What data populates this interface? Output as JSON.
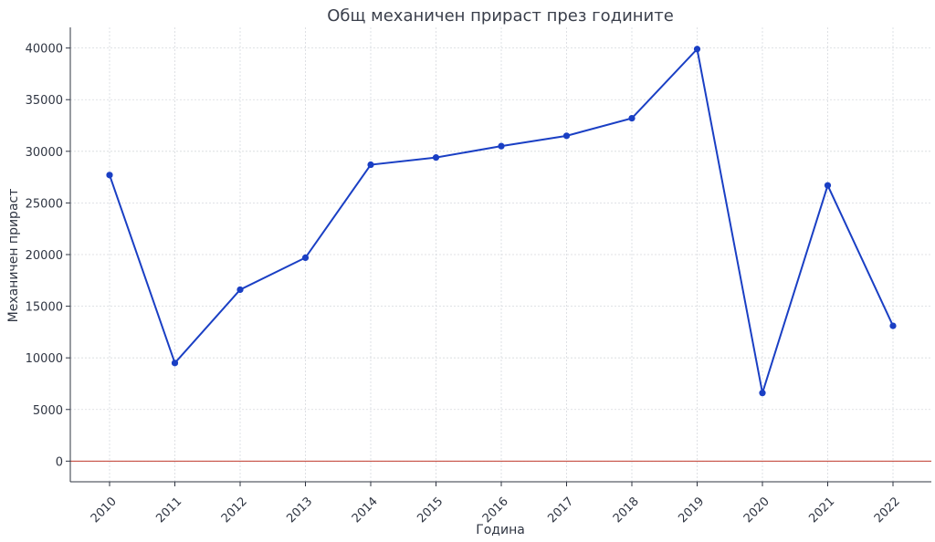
{
  "chart_data": {
    "type": "line",
    "title": "Общ механичен прираст през годините",
    "xlabel": "Година",
    "ylabel": "Механичен прираст",
    "categories": [
      "2010",
      "2011",
      "2012",
      "2013",
      "2014",
      "2015",
      "2016",
      "2017",
      "2018",
      "2019",
      "2020",
      "2021",
      "2022"
    ],
    "series": [
      {
        "values": [
          27700,
          9500,
          16600,
          19700,
          28700,
          29400,
          30500,
          31500,
          33200,
          39900,
          6600,
          26700,
          13100
        ],
        "color": "#1a3fc4"
      }
    ],
    "ylim": [
      -2000,
      42000
    ],
    "yticks": [
      0,
      5000,
      10000,
      15000,
      20000,
      25000,
      30000,
      35000,
      40000
    ],
    "reference_line": {
      "y": 0,
      "color": "#c0392b"
    },
    "grid": true,
    "marker": "circle"
  }
}
